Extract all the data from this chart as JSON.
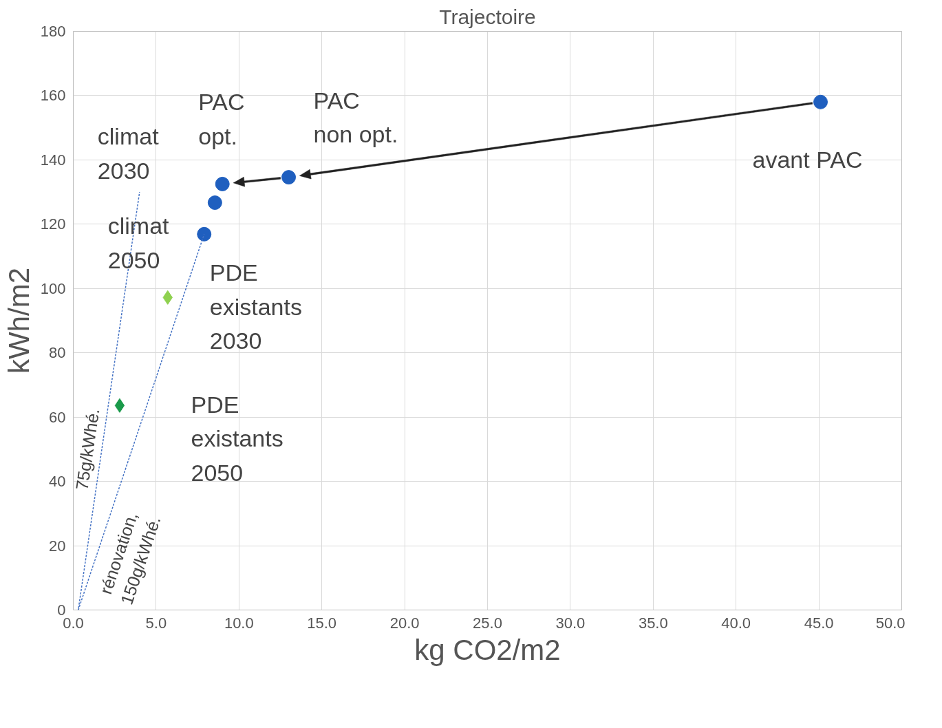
{
  "chart_data": {
    "type": "scatter",
    "title": "Trajectoire",
    "xlabel": "kg CO2/m2",
    "ylabel": "kWh/m2",
    "xlim": [
      0,
      50
    ],
    "ylim": [
      0,
      180
    ],
    "xticks": [
      {
        "value": 0,
        "label": "0.0"
      },
      {
        "value": 5,
        "label": "5.0"
      },
      {
        "value": 10,
        "label": "10.0"
      },
      {
        "value": 15,
        "label": "15.0"
      },
      {
        "value": 20,
        "label": "20.0"
      },
      {
        "value": 25,
        "label": "25.0"
      },
      {
        "value": 30,
        "label": "30.0"
      },
      {
        "value": 35,
        "label": "35.0"
      },
      {
        "value": 40,
        "label": "40.0"
      },
      {
        "value": 45,
        "label": "45.0"
      },
      {
        "value": 50,
        "label": "50.0"
      }
    ],
    "yticks": [
      0,
      20,
      40,
      60,
      80,
      100,
      120,
      140,
      160,
      180
    ],
    "grid": true,
    "series": [
      {
        "marker": "circle",
        "color": "#1f5fbf",
        "x": [
          45.1,
          13.0,
          9.0,
          8.55,
          7.9
        ],
        "values": [
          158,
          134.6,
          132.5,
          126.7,
          116.9
        ]
      },
      {
        "marker": "diamond",
        "color": "#8fd14f",
        "x": [
          5.7
        ],
        "values": [
          97.2
        ]
      },
      {
        "marker": "diamond",
        "color": "#1a9a4a",
        "x": [
          2.8
        ],
        "values": [
          63.6
        ]
      },
      {
        "type": "line",
        "line_style": "dashed",
        "color": "#4472c4",
        "x": [
          0.3,
          4.0
        ],
        "values": [
          0,
          130
        ]
      },
      {
        "type": "line",
        "line_style": "dashed",
        "color": "#4472c4",
        "x": [
          0.3,
          7.9
        ],
        "values": [
          0,
          116.9
        ]
      }
    ],
    "annotations": [
      {
        "text": "PAC\nopt.",
        "x": 9.0,
        "y": 132.5
      },
      {
        "text": "PAC\nnon opt.",
        "x": 13.0,
        "y": 134.6
      },
      {
        "text": "avant PAC",
        "x": 45.1,
        "y": 158
      },
      {
        "text": "climat\n2030",
        "x": 4.0,
        "y": 130
      },
      {
        "text": "climat\n2050",
        "x": 7.9,
        "y": 116.9
      },
      {
        "text": "PDE\nexistants\n2030",
        "x": 5.7,
        "y": 97.2
      },
      "PDE\nexistants\n2050",
      {
        "text": "75g/kWhé.",
        "x": 1.72,
        "y": 50
      },
      {
        "text": "rénovation,\n150g/kWhé.",
        "x": 1.6,
        "y": 20
      }
    ]
  }
}
